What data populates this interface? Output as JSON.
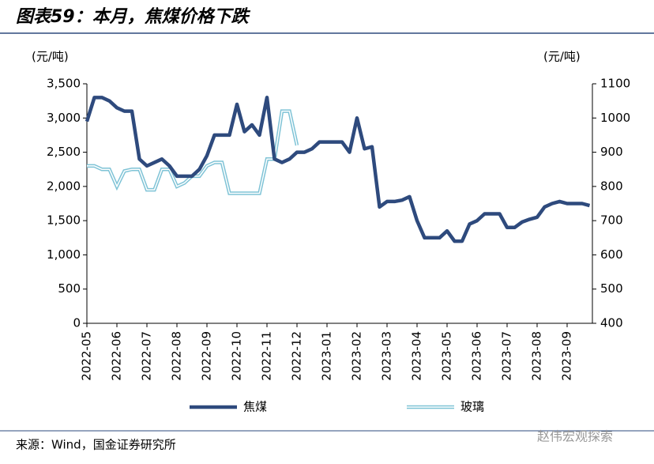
{
  "chart_data": {
    "type": "line",
    "title": "图表59：本月，焦煤价格下跌",
    "y_label": "(元/吨)",
    "y2_label": "(元/吨)",
    "source": "来源：Wind，国金证券研究所",
    "watermark": "赵伟宏观探索",
    "categories": [
      "2022-05",
      null,
      null,
      null,
      "2022-06",
      null,
      null,
      null,
      "2022-07",
      null,
      null,
      null,
      "2022-08",
      null,
      null,
      null,
      "2022-09",
      null,
      null,
      null,
      "2022-10",
      null,
      null,
      null,
      "2022-11",
      null,
      null,
      null,
      "2022-12",
      null,
      null,
      null,
      "2023-01",
      null,
      null,
      null,
      "2023-02",
      null,
      null,
      null,
      "2023-03",
      null,
      null,
      null,
      "2023-04",
      null,
      null,
      null,
      "2023-05",
      null,
      null,
      null,
      "2023-06",
      null,
      null,
      null,
      "2023-07",
      null,
      null,
      null,
      "2023-08",
      null,
      null,
      null,
      "2023-09",
      null,
      null,
      null
    ],
    "ylim": [
      0,
      3500
    ],
    "yticks": [
      0,
      500,
      {
        "value": 1000,
        "label": "1,000"
      },
      {
        "value": 1500,
        "label": "1,500"
      },
      {
        "value": 2000,
        "label": "2,000"
      },
      {
        "value": 2500,
        "label": "2,500"
      },
      {
        "value": 3000,
        "label": "3,000"
      },
      {
        "value": 3500,
        "label": "3,500"
      }
    ],
    "y2lim": [
      400,
      1100
    ],
    "y2ticks": [
      400,
      500,
      600,
      700,
      800,
      900,
      1000,
      1100
    ],
    "series": [
      {
        "name": "焦煤",
        "color": "#2e4a7d",
        "values": [
          2950,
          3300,
          3300,
          3250,
          3150,
          3100,
          3100,
          2400,
          2300,
          2350,
          2400,
          2300,
          2150,
          2150,
          2150,
          2250,
          2450,
          2750,
          2750,
          2750,
          3200,
          2800,
          2900,
          2750,
          3300,
          2400,
          2350,
          2400,
          2500,
          2500,
          2550,
          2650,
          2650,
          2650,
          2650,
          2500,
          3000,
          2550,
          2580,
          1700,
          1780,
          1780,
          1800,
          1850,
          1500,
          1250,
          1250,
          1250,
          1350,
          1200,
          1200,
          1450,
          1500,
          1600,
          1600,
          1600,
          1400,
          1400,
          1480,
          1520,
          1550,
          1700,
          1750,
          1780,
          1750,
          1750,
          1750,
          1720
        ]
      },
      {
        "name": "玻璃",
        "color": "#7fc3d6",
        "axis": "y2",
        "values": [
          860,
          860,
          850,
          850,
          800,
          845,
          850,
          850,
          790,
          790,
          850,
          850,
          800,
          810,
          830,
          830,
          860,
          870,
          870,
          780,
          780,
          780,
          780,
          780,
          880,
          880,
          1020,
          1020,
          920,
          null,
          null,
          null,
          null,
          null,
          null,
          null,
          null,
          null,
          null,
          null,
          null,
          null,
          null,
          null,
          null,
          null,
          null,
          null,
          null,
          null,
          null,
          null,
          null,
          null,
          null,
          null,
          null,
          null,
          null,
          null,
          null,
          null,
          null,
          null,
          null,
          null,
          null,
          null
        ]
      }
    ]
  }
}
